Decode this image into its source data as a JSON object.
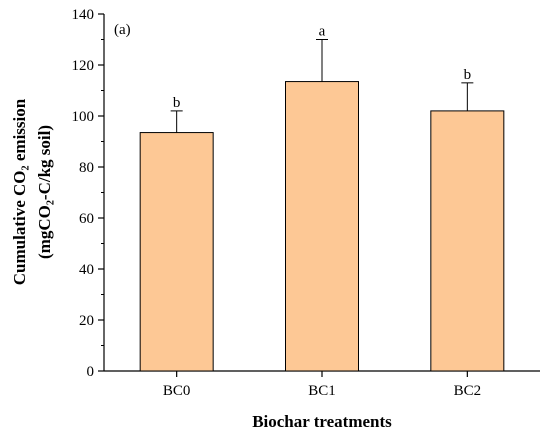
{
  "chart_data": {
    "type": "bar",
    "panel_label": "(a)",
    "categories": [
      "BC0",
      "BC1",
      "BC2"
    ],
    "values": [
      93.5,
      113.5,
      102.0
    ],
    "errors": [
      8.5,
      16.5,
      11.0
    ],
    "significance": [
      "b",
      "a",
      "b"
    ],
    "xlabel": "Biochar treatments",
    "ylabel_line1": "Cumulative CO₂ emission",
    "ylabel_line2": "(mgCO₂-C/kg soil)",
    "ylim": [
      0,
      140
    ],
    "yticks": [
      0,
      20,
      40,
      60,
      80,
      100,
      120,
      140
    ],
    "grid": false,
    "legend": "none",
    "colors": {
      "bar_fill": "#fdc895",
      "bar_stroke": "#000000"
    }
  }
}
